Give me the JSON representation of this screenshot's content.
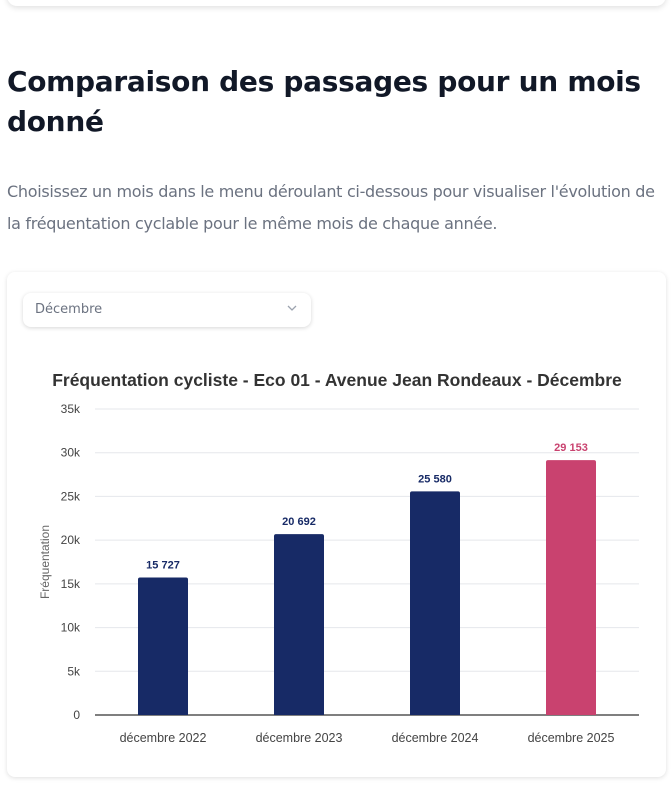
{
  "section": {
    "heading": "Comparaison des passages pour un mois donné",
    "description": "Choisissez un mois dans le menu déroulant ci-dessous pour visualiser l'évolution de la fréquentation cyclable pour le même mois de chaque année."
  },
  "month_select": {
    "value": "Décembre",
    "icon": "chevron-down-icon"
  },
  "colors": {
    "bar": "#172a66",
    "highlight": "#c9426f",
    "grid": "#e5e7eb",
    "axis": "#333333"
  },
  "chart_data": {
    "type": "bar",
    "title": "Fréquentation cycliste - Eco 01 - Avenue Jean Rondeaux - Décembre",
    "xlabel": "",
    "ylabel": "Fréquentation",
    "categories": [
      "décembre 2022",
      "décembre 2023",
      "décembre 2024",
      "décembre 2025"
    ],
    "values": [
      15727,
      20692,
      25580,
      29153
    ],
    "value_labels": [
      "15 727",
      "20 692",
      "25 580",
      "29 153"
    ],
    "highlight_index": 3,
    "ylim": [
      0,
      35000
    ],
    "yticks": [
      0,
      5000,
      10000,
      15000,
      20000,
      25000,
      30000,
      35000
    ],
    "ytick_labels": [
      "0",
      "5k",
      "10k",
      "15k",
      "20k",
      "25k",
      "30k",
      "35k"
    ],
    "grid": true,
    "legend": "none"
  }
}
